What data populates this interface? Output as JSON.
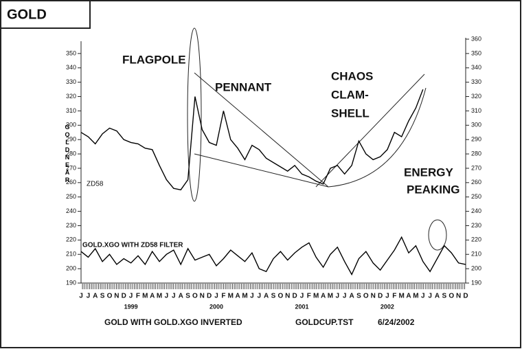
{
  "chart_data": {
    "type": "line",
    "title": "GOLD",
    "y_axis_label": "GOLD NEAR",
    "categories": [
      "J",
      "J",
      "A",
      "S",
      "O",
      "N",
      "D",
      "J",
      "F",
      "M",
      "A",
      "M",
      "J",
      "J",
      "A",
      "S",
      "O",
      "N",
      "D",
      "J",
      "F",
      "M",
      "A",
      "M",
      "J",
      "J",
      "A",
      "S",
      "O",
      "N",
      "D",
      "J",
      "F",
      "M",
      "A",
      "M",
      "J",
      "J",
      "A",
      "S",
      "O",
      "N",
      "D",
      "J",
      "F",
      "M",
      "A",
      "M",
      "J",
      "J",
      "A",
      "S",
      "O",
      "N",
      "D"
    ],
    "year_labels": [
      null,
      null,
      null,
      null,
      null,
      null,
      null,
      "1999",
      null,
      null,
      null,
      null,
      null,
      null,
      null,
      null,
      null,
      null,
      null,
      "2000",
      null,
      null,
      null,
      null,
      null,
      null,
      null,
      null,
      null,
      null,
      null,
      "2001",
      null,
      null,
      null,
      null,
      null,
      null,
      null,
      null,
      null,
      null,
      null,
      "2002",
      null,
      null,
      null,
      null,
      null,
      null,
      null,
      null,
      null,
      null,
      null
    ],
    "series": [
      {
        "name": "GOLD",
        "color": "#000000",
        "values": [
          295,
          292,
          287,
          294,
          298,
          296,
          290,
          288,
          287,
          284,
          283,
          272,
          262,
          256,
          255,
          262,
          320,
          297,
          288,
          286,
          310,
          290,
          284,
          276,
          286,
          283,
          277,
          274,
          271,
          268,
          272,
          266,
          264,
          261,
          259,
          270,
          272,
          266,
          272,
          289,
          280,
          276,
          278,
          283,
          295,
          292,
          303,
          312,
          325,
          null,
          null,
          null,
          null,
          null,
          null
        ]
      },
      {
        "name": "GOLD.XGO WITH ZD58 FILTER",
        "color": "#000000",
        "values": [
          212,
          208,
          214,
          205,
          210,
          203,
          207,
          204,
          209,
          203,
          212,
          205,
          210,
          213,
          203,
          214,
          206,
          208,
          210,
          202,
          207,
          213,
          209,
          205,
          211,
          200,
          198,
          207,
          212,
          206,
          211,
          215,
          218,
          208,
          201,
          210,
          215,
          205,
          196,
          207,
          212,
          204,
          199,
          206,
          213,
          222,
          211,
          216,
          205,
          198,
          207,
          216,
          211,
          204,
          203
        ]
      }
    ],
    "ylim": [
      190,
      360
    ],
    "yticks": [
      190,
      200,
      210,
      220,
      230,
      240,
      250,
      260,
      270,
      280,
      290,
      300,
      310,
      320,
      330,
      340,
      350
    ],
    "y2lim": [
      190,
      360
    ],
    "y2ticks": [
      190,
      200,
      210,
      220,
      230,
      240,
      250,
      260,
      270,
      280,
      290,
      300,
      310,
      320,
      330,
      340,
      350,
      360
    ],
    "annotations": {
      "flagpole": "FLAGPOLE",
      "pennant": "PENNANT",
      "chaos": "CHAOS",
      "clam": "CLAM-",
      "shell": "SHELL",
      "energy": "ENERGY",
      "peaking": "PEAKING",
      "filter": "ZD58"
    },
    "footer": [
      "GOLD WITH GOLD.XGO INVERTED",
      "GOLDCUP.TST",
      "6/24/2002"
    ]
  }
}
